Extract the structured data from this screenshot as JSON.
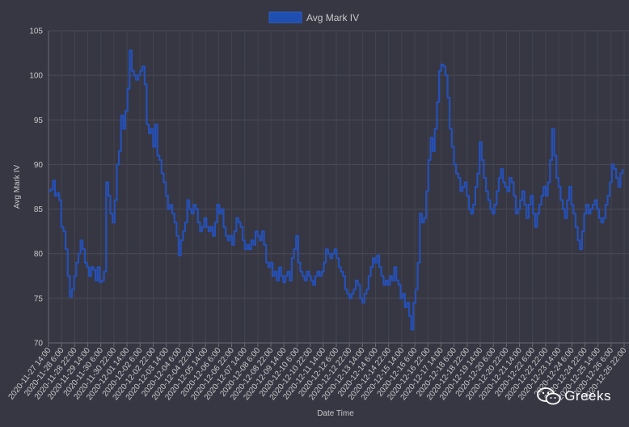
{
  "chart_data": {
    "type": "line",
    "legend": {
      "label": "Avg Mark IV",
      "position": "top",
      "color": "#1f4fb0"
    },
    "xlabel": "Date Time",
    "ylabel": "Avg Mark IV",
    "ylim": [
      70,
      105
    ],
    "yticks": [
      "70",
      "75",
      "80",
      "85",
      "90",
      "95",
      "100",
      "105"
    ],
    "grid": true,
    "line_color": "#2550b8",
    "xticks": [
      "2020-11-27 14:00",
      "2020-11-28 6:00",
      "2020-11-28 22:00",
      "2020-11-29 14:00",
      "2020-11-30 6:00",
      "2020-11-30 22:00",
      "2020-12-01 14:00",
      "2020-12-02 6:00",
      "2020-12-02 22:00",
      "2020-12-03 14:00",
      "2020-12-04 6:00",
      "2020-12-04 22:00",
      "2020-12-05 14:00",
      "2020-12-06 6:00",
      "2020-12-06 22:00",
      "2020-12-07 14:00",
      "2020-12-08 6:00",
      "2020-12-08 22:00",
      "2020-12-09 14:00",
      "2020-12-10 6:00",
      "2020-12-10 22:00",
      "2020-12-11 14:00",
      "2020-12-12 6:00",
      "2020-12-12 22:00",
      "2020-12-13 14:00",
      "2020-12-14 6:00",
      "2020-12-14 22:00",
      "2020-12-15 14:00",
      "2020-12-16 6:00",
      "2020-12-16 22:00",
      "2020-12-17 14:00",
      "2020-12-18 6:00",
      "2020-12-18 22:00",
      "2020-12-19 14:00",
      "2020-12-20 6:00",
      "2020-12-20 22:00",
      "2020-12-21 14:00",
      "2020-12-22 6:00",
      "2020-12-22 22:00",
      "2020-12-23 14:00",
      "2020-12-24 6:00",
      "2020-12-24 22:00",
      "2020-12-25 14:00",
      "2020-12-26 6:00",
      "2020-12-26 22:00"
    ],
    "series": [
      {
        "name": "Avg Mark IV",
        "values": [
          87.0,
          87.2,
          88.2,
          86.5,
          86.8,
          86.0,
          83.0,
          82.5,
          80.5,
          77.5,
          75.2,
          76.0,
          77.5,
          79.0,
          80.0,
          81.5,
          80.5,
          79.0,
          78.5,
          77.5,
          78.5,
          78.2,
          77.0,
          78.5,
          76.8,
          77.0,
          78.0,
          88.0,
          86.5,
          84.5,
          83.5,
          86.0,
          90.0,
          91.5,
          95.5,
          94.0,
          96.0,
          98.5,
          102.8,
          100.5,
          100.0,
          99.5,
          100.0,
          100.5,
          101.0,
          99.0,
          94.5,
          93.5,
          94.0,
          92.0,
          94.5,
          91.0,
          90.5,
          89.0,
          88.0,
          86.5,
          85.0,
          85.5,
          84.5,
          83.5,
          82.0,
          79.8,
          81.5,
          82.5,
          83.5,
          86.0,
          85.0,
          84.5,
          85.5,
          85.0,
          83.5,
          82.5,
          83.0,
          84.0,
          83.0,
          82.5,
          83.0,
          82.0,
          83.5,
          85.5,
          84.5,
          85.0,
          83.0,
          82.0,
          81.5,
          82.0,
          81.0,
          82.5,
          84.0,
          83.5,
          83.0,
          81.5,
          80.5,
          81.0,
          80.5,
          81.5,
          81.0,
          82.5,
          82.0,
          81.5,
          82.5,
          81.0,
          79.0,
          78.5,
          79.0,
          77.5,
          78.0,
          77.0,
          78.5,
          77.5,
          76.8,
          77.5,
          78.0,
          77.0,
          79.5,
          80.5,
          82.0,
          79.0,
          78.0,
          77.5,
          77.0,
          78.0,
          77.5,
          77.0,
          76.5,
          77.5,
          78.0,
          77.5,
          78.0,
          79.0,
          80.5,
          80.0,
          79.5,
          80.0,
          80.5,
          79.5,
          78.5,
          78.0,
          77.5,
          76.0,
          75.5,
          75.0,
          75.5,
          76.0,
          77.0,
          76.5,
          75.0,
          74.5,
          75.5,
          76.0,
          77.5,
          78.5,
          79.5,
          79.0,
          79.8,
          78.5,
          77.5,
          76.5,
          77.0,
          76.5,
          77.5,
          77.0,
          78.5,
          77.0,
          76.5,
          75.0,
          75.5,
          74.0,
          74.5,
          73.0,
          71.5,
          74.5,
          76.0,
          79.0,
          84.5,
          83.5,
          84.0,
          87.0,
          90.5,
          93.0,
          91.5,
          94.0,
          97.0,
          100.5,
          101.2,
          101.0,
          100.0,
          97.5,
          94.0,
          92.0,
          90.0,
          89.0,
          88.5,
          87.0,
          87.5,
          88.0,
          86.5,
          85.0,
          84.5,
          85.5,
          87.5,
          89.0,
          92.5,
          90.5,
          88.5,
          87.0,
          86.0,
          85.0,
          84.5,
          85.5,
          87.0,
          88.5,
          89.5,
          88.0,
          87.5,
          87.0,
          88.5,
          88.0,
          86.5,
          84.5,
          85.0,
          86.0,
          87.0,
          85.5,
          84.0,
          85.5,
          86.5,
          84.5,
          83.0,
          84.5,
          85.5,
          86.5,
          87.5,
          86.5,
          88.0,
          90.5,
          94.0,
          91.0,
          88.5,
          87.5,
          86.0,
          85.0,
          84.0,
          86.0,
          87.5,
          85.5,
          84.5,
          83.0,
          81.5,
          80.5,
          82.5,
          84.5,
          85.5,
          84.5,
          85.0,
          85.5,
          86.0,
          85.0,
          84.0,
          83.5,
          84.0,
          85.5,
          86.5,
          88.0,
          90.0,
          89.5,
          88.5,
          87.5,
          89.0,
          89.5
        ]
      }
    ]
  },
  "watermark": {
    "text": "Greeks",
    "icon": "wechat-icon"
  }
}
